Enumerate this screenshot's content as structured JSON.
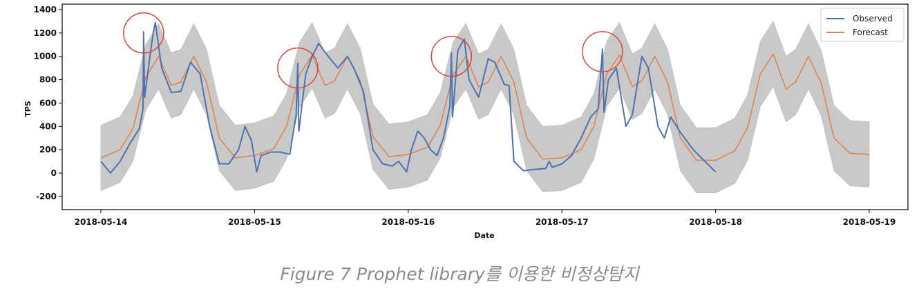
{
  "chart_data": {
    "type": "line",
    "title": "",
    "xlabel": "Date",
    "ylabel": "TPS",
    "x_tick_labels": [
      "2018-05-14",
      "2018-05-15",
      "2018-05-16",
      "2018-05-17",
      "2018-05-18",
      "2018-05-19"
    ],
    "x_range": [
      "2018-05-14 00:00",
      "2018-05-19 00:00"
    ],
    "y_ticks": [
      -200,
      0,
      200,
      400,
      600,
      800,
      1000,
      1200,
      1400
    ],
    "ylim": [
      -300,
      1420
    ],
    "grid": false,
    "legend_position": "top-right",
    "series": [
      {
        "name": "Observed",
        "color": "#4c72b0",
        "points": [
          [
            "2018-05-14 00:00",
            100
          ],
          [
            "2018-05-14 01:30",
            0
          ],
          [
            "2018-05-14 03:00",
            100
          ],
          [
            "2018-05-14 04:30",
            250
          ],
          [
            "2018-05-14 06:00",
            380
          ],
          [
            "2018-05-14 06:35",
            550
          ],
          [
            "2018-05-14 06:40",
            1210
          ],
          [
            "2018-05-14 06:50",
            650
          ],
          [
            "2018-05-14 07:40",
            1000
          ],
          [
            "2018-05-14 08:10",
            1200
          ],
          [
            "2018-05-14 08:30",
            1290
          ],
          [
            "2018-05-14 09:30",
            900
          ],
          [
            "2018-05-14 11:00",
            690
          ],
          [
            "2018-05-14 12:30",
            700
          ],
          [
            "2018-05-14 14:00",
            950
          ],
          [
            "2018-05-14 15:30",
            850
          ],
          [
            "2018-05-14 17:00",
            400
          ],
          [
            "2018-05-14 18:30",
            80
          ],
          [
            "2018-05-14 20:00",
            80
          ],
          [
            "2018-05-14 21:30",
            200
          ],
          [
            "2018-05-14 22:30",
            400
          ],
          [
            "2018-05-14 23:30",
            280
          ],
          [
            "2018-05-15 00:00",
            120
          ],
          [
            "2018-05-15 00:20",
            10
          ],
          [
            "2018-05-15 01:00",
            150
          ],
          [
            "2018-05-15 02:30",
            180
          ],
          [
            "2018-05-15 04:00",
            180
          ],
          [
            "2018-05-15 05:30",
            160
          ],
          [
            "2018-05-15 06:30",
            500
          ],
          [
            "2018-05-15 06:45",
            940
          ],
          [
            "2018-05-15 06:55",
            360
          ],
          [
            "2018-05-15 08:00",
            850
          ],
          [
            "2018-05-15 09:00",
            1000
          ],
          [
            "2018-05-15 10:00",
            1110
          ],
          [
            "2018-05-15 11:30",
            1000
          ],
          [
            "2018-05-15 13:00",
            900
          ],
          [
            "2018-05-15 14:30",
            1000
          ],
          [
            "2018-05-15 15:30",
            900
          ],
          [
            "2018-05-15 17:00",
            700
          ],
          [
            "2018-05-15 18:30",
            200
          ],
          [
            "2018-05-15 20:00",
            80
          ],
          [
            "2018-05-15 21:30",
            60
          ],
          [
            "2018-05-15 22:30",
            100
          ],
          [
            "2018-05-15 23:45",
            10
          ],
          [
            "2018-05-16 00:30",
            200
          ],
          [
            "2018-05-16 01:30",
            360
          ],
          [
            "2018-05-16 02:30",
            300
          ],
          [
            "2018-05-16 03:30",
            200
          ],
          [
            "2018-05-16 04:30",
            150
          ],
          [
            "2018-05-16 05:30",
            300
          ],
          [
            "2018-05-16 06:30",
            570
          ],
          [
            "2018-05-16 06:45",
            1030
          ],
          [
            "2018-05-16 06:55",
            480
          ],
          [
            "2018-05-16 07:45",
            1050
          ],
          [
            "2018-05-16 08:45",
            1150
          ],
          [
            "2018-05-16 09:30",
            800
          ],
          [
            "2018-05-16 11:00",
            650
          ],
          [
            "2018-05-16 12:30",
            980
          ],
          [
            "2018-05-16 13:30",
            950
          ],
          [
            "2018-05-16 15:00",
            760
          ],
          [
            "2018-05-16 15:45",
            750
          ],
          [
            "2018-05-16 16:30",
            100
          ],
          [
            "2018-05-16 18:00",
            20
          ],
          [
            "2018-05-16 19:30",
            30
          ],
          [
            "2018-05-16 21:30",
            40
          ],
          [
            "2018-05-16 22:00",
            100
          ],
          [
            "2018-05-16 22:30",
            50
          ],
          [
            "2018-05-17 00:00",
            80
          ],
          [
            "2018-05-17 01:30",
            150
          ],
          [
            "2018-05-17 03:00",
            300
          ],
          [
            "2018-05-17 04:30",
            480
          ],
          [
            "2018-05-17 05:40",
            550
          ],
          [
            "2018-05-17 06:20",
            1060
          ],
          [
            "2018-05-17 06:35",
            520
          ],
          [
            "2018-05-17 07:15",
            800
          ],
          [
            "2018-05-17 08:30",
            900
          ],
          [
            "2018-05-17 10:00",
            400
          ],
          [
            "2018-05-17 11:00",
            500
          ],
          [
            "2018-05-17 12:30",
            1000
          ],
          [
            "2018-05-17 13:30",
            900
          ],
          [
            "2018-05-17 15:00",
            400
          ],
          [
            "2018-05-17 16:00",
            300
          ],
          [
            "2018-05-17 17:00",
            480
          ],
          [
            "2018-05-17 18:30",
            350
          ],
          [
            "2018-05-17 20:30",
            200
          ],
          [
            "2018-05-18 00:00",
            10
          ]
        ]
      },
      {
        "name": "Forecast",
        "color": "#dd8452",
        "points": [
          [
            "2018-05-14 00:00",
            130
          ],
          [
            "2018-05-14 03:00",
            200
          ],
          [
            "2018-05-14 05:00",
            380
          ],
          [
            "2018-05-14 07:00",
            820
          ],
          [
            "2018-05-14 09:00",
            1000
          ],
          [
            "2018-05-14 11:00",
            750
          ],
          [
            "2018-05-14 12:30",
            780
          ],
          [
            "2018-05-14 14:30",
            1000
          ],
          [
            "2018-05-14 16:30",
            780
          ],
          [
            "2018-05-14 18:30",
            300
          ],
          [
            "2018-05-14 21:00",
            130
          ],
          [
            "2018-05-15 00:00",
            150
          ],
          [
            "2018-05-15 03:00",
            210
          ],
          [
            "2018-05-15 05:00",
            400
          ],
          [
            "2018-05-15 07:00",
            840
          ],
          [
            "2018-05-15 09:00",
            1010
          ],
          [
            "2018-05-15 11:00",
            750
          ],
          [
            "2018-05-15 12:30",
            790
          ],
          [
            "2018-05-15 14:30",
            1000
          ],
          [
            "2018-05-15 16:30",
            790
          ],
          [
            "2018-05-15 18:30",
            310
          ],
          [
            "2018-05-15 21:00",
            140
          ],
          [
            "2018-05-16 00:00",
            160
          ],
          [
            "2018-05-16 03:00",
            220
          ],
          [
            "2018-05-16 05:00",
            410
          ],
          [
            "2018-05-16 07:00",
            840
          ],
          [
            "2018-05-16 09:00",
            1000
          ],
          [
            "2018-05-16 11:00",
            740
          ],
          [
            "2018-05-16 12:30",
            780
          ],
          [
            "2018-05-16 14:30",
            1000
          ],
          [
            "2018-05-16 16:30",
            780
          ],
          [
            "2018-05-16 18:30",
            300
          ],
          [
            "2018-05-16 21:00",
            120
          ],
          [
            "2018-05-17 00:00",
            130
          ],
          [
            "2018-05-17 03:00",
            200
          ],
          [
            "2018-05-17 05:00",
            400
          ],
          [
            "2018-05-17 07:00",
            850
          ],
          [
            "2018-05-17 09:00",
            1010
          ],
          [
            "2018-05-17 11:00",
            740
          ],
          [
            "2018-05-17 12:30",
            790
          ],
          [
            "2018-05-17 14:30",
            1000
          ],
          [
            "2018-05-17 16:30",
            780
          ],
          [
            "2018-05-17 18:30",
            300
          ],
          [
            "2018-05-17 21:00",
            110
          ],
          [
            "2018-05-18 00:00",
            110
          ],
          [
            "2018-05-18 03:00",
            190
          ],
          [
            "2018-05-18 05:00",
            390
          ],
          [
            "2018-05-18 07:00",
            850
          ],
          [
            "2018-05-18 09:00",
            1020
          ],
          [
            "2018-05-18 11:00",
            720
          ],
          [
            "2018-05-18 12:30",
            780
          ],
          [
            "2018-05-18 14:30",
            1000
          ],
          [
            "2018-05-18 16:30",
            770
          ],
          [
            "2018-05-18 18:30",
            300
          ],
          [
            "2018-05-18 21:00",
            170
          ],
          [
            "2018-05-19 00:00",
            160
          ]
        ]
      }
    ],
    "interval": {
      "color": "#c0c0c0",
      "half_width": 280
    },
    "anomaly_markers": [
      {
        "x": "2018-05-14 06:40",
        "y": 1200
      },
      {
        "x": "2018-05-15 06:45",
        "y": 900
      },
      {
        "x": "2018-05-16 06:45",
        "y": 1000
      },
      {
        "x": "2018-05-17 06:20",
        "y": 1040
      }
    ],
    "anomaly_marker_color": "#d9463a"
  },
  "caption": "Figure 7 Prophet library를 이용한 비정상탐지"
}
